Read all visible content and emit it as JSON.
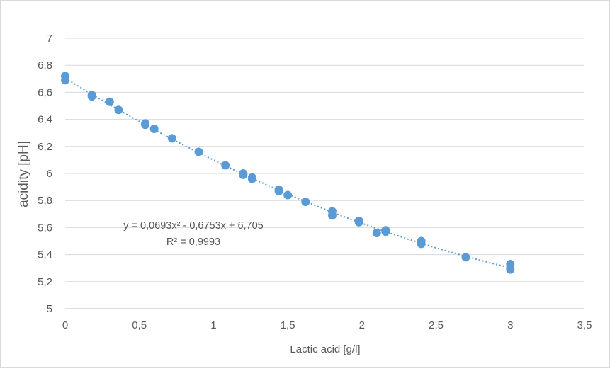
{
  "chart_data": {
    "type": "scatter",
    "title": "",
    "xlabel": "Lactic acid [g/l]",
    "ylabel": "acidity [pH]",
    "xlim": [
      0,
      3.5
    ],
    "ylim": [
      5,
      7
    ],
    "x_ticks": [
      "0",
      "0,5",
      "1",
      "1,5",
      "2",
      "2,5",
      "3",
      "3,5"
    ],
    "y_ticks": [
      "5",
      "5,2",
      "5,4",
      "5,6",
      "5,8",
      "6",
      "6,2",
      "6,4",
      "6,6",
      "6,8",
      "7"
    ],
    "grid": "horizontal",
    "marker_color": "#5b9bd5",
    "trendline_color": "#5b9bd5",
    "points": [
      [
        0,
        6.72
      ],
      [
        0,
        6.69
      ],
      [
        0.18,
        6.58
      ],
      [
        0.18,
        6.57
      ],
      [
        0.3,
        6.53
      ],
      [
        0.36,
        6.47
      ],
      [
        0.54,
        6.37
      ],
      [
        0.54,
        6.36
      ],
      [
        0.6,
        6.33
      ],
      [
        0.72,
        6.26
      ],
      [
        0.9,
        6.16
      ],
      [
        1.08,
        6.06
      ],
      [
        1.2,
        6.0
      ],
      [
        1.2,
        5.99
      ],
      [
        1.26,
        5.97
      ],
      [
        1.26,
        5.96
      ],
      [
        1.44,
        5.88
      ],
      [
        1.44,
        5.87
      ],
      [
        1.5,
        5.84
      ],
      [
        1.62,
        5.79
      ],
      [
        1.8,
        5.72
      ],
      [
        1.8,
        5.69
      ],
      [
        1.98,
        5.65
      ],
      [
        1.98,
        5.64
      ],
      [
        2.1,
        5.56
      ],
      [
        2.16,
        5.58
      ],
      [
        2.16,
        5.57
      ],
      [
        2.4,
        5.5
      ],
      [
        2.4,
        5.48
      ],
      [
        2.7,
        5.38
      ],
      [
        3.0,
        5.33
      ],
      [
        3.0,
        5.29
      ]
    ],
    "trendline": {
      "type": "polynomial",
      "coefficients": [
        0.0693,
        -0.6753,
        6.705
      ],
      "x_range": [
        0,
        3
      ],
      "equation": "y = 0,0693x² - 0,6753x + 6,705",
      "r_squared": "R² = 0,9993"
    }
  }
}
